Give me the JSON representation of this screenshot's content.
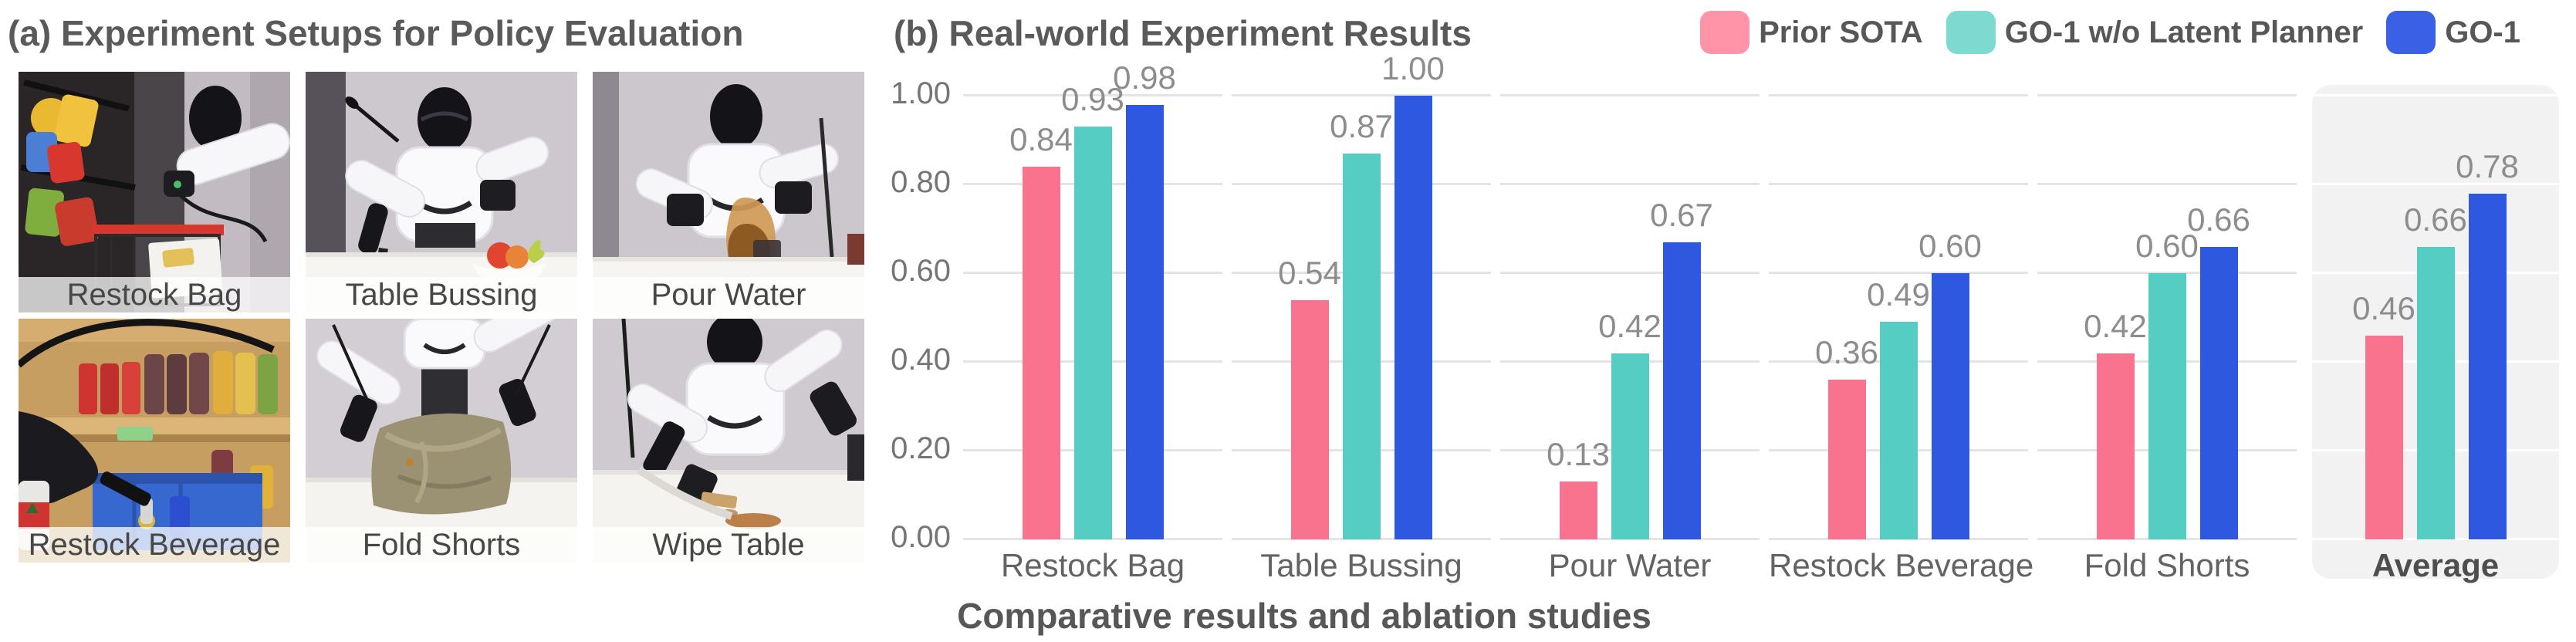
{
  "figure": {
    "panel_a_title": "(a) Experiment Setups for Policy Evaluation",
    "panel_b_title": "(b) Real-world Experiment Results",
    "caption": "Comparative results and ablation studies"
  },
  "photos": [
    {
      "label": "Restock Bag"
    },
    {
      "label": "Table Bussing"
    },
    {
      "label": "Pour Water"
    },
    {
      "label": "Restock Beverage"
    },
    {
      "label": "Fold Shorts"
    },
    {
      "label": "Wipe Table"
    }
  ],
  "chart_data": {
    "type": "bar",
    "title": "(b) Real-world Experiment Results",
    "categories": [
      "Restock Bag",
      "Table Bussing",
      "Pour Water",
      "Restock Beverage",
      "Fold Shorts",
      "Average"
    ],
    "highlight_category": "Average",
    "series": [
      {
        "name": "Prior SOTA",
        "color": "#F9738F",
        "legend_color": "#FF93A8",
        "values": [
          0.84,
          0.54,
          0.13,
          0.36,
          0.42,
          0.46
        ]
      },
      {
        "name": "GO-1 w/o Latent Planner",
        "color": "#55CDC3",
        "legend_color": "#7EDAD0",
        "values": [
          0.93,
          0.87,
          0.42,
          0.49,
          0.6,
          0.66
        ]
      },
      {
        "name": "GO-1",
        "color": "#2F58E1",
        "legend_color": "#3A60E6",
        "values": [
          0.98,
          1.0,
          0.67,
          0.6,
          0.66,
          0.78
        ]
      }
    ],
    "y_ticks": [
      "0.00",
      "0.20",
      "0.40",
      "0.60",
      "0.80",
      "1.00"
    ],
    "ylim": [
      0,
      1.0
    ],
    "ylabel": "",
    "xlabel": "",
    "grid": true,
    "gridline_color": "#e4e4e4",
    "highlight_bg_color": "#f2f2f3",
    "legend_position": "top-right",
    "value_label_format": "2-decimals"
  }
}
